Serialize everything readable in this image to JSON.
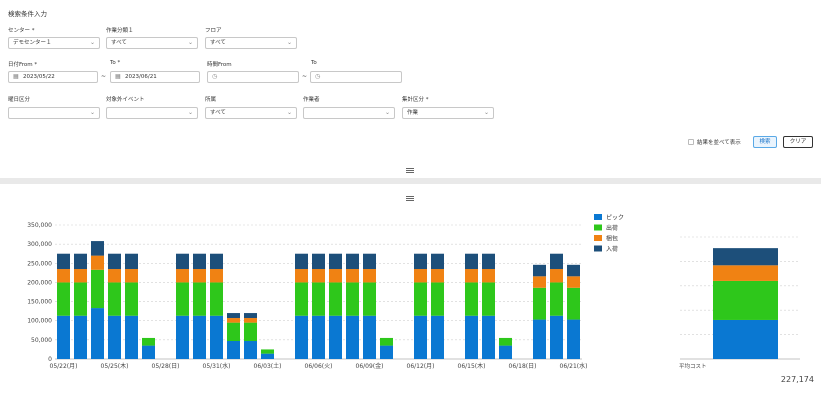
{
  "form": {
    "title": "検索条件入力",
    "center": {
      "label": "センター",
      "value": "デモセンター１"
    },
    "work_class": {
      "label": "作業分類１",
      "value": "すべて"
    },
    "floor": {
      "label": "フロア",
      "value": "すべて"
    },
    "date_from": {
      "label": "日付From",
      "value": "2023/05/22"
    },
    "date_to": {
      "label": "To",
      "value": "2023/06/21"
    },
    "time_from": {
      "label": "時間From",
      "value": ""
    },
    "time_to": {
      "label": "To",
      "value": ""
    },
    "range_sep": "~",
    "weekday": {
      "label": "曜日区分",
      "value": ""
    },
    "excluded_event": {
      "label": "対象外イベント",
      "value": ""
    },
    "affiliation": {
      "label": "所属",
      "value": "すべて"
    },
    "worker": {
      "label": "作業者",
      "value": ""
    },
    "aggregation": {
      "label": "集計区分",
      "value": "作業"
    },
    "show_side_by_side": "結果を並べて表示",
    "search_button": "検索",
    "clear_button": "クリア"
  },
  "colors": {
    "pick": "#0a78d2",
    "shipping": "#2ec71b",
    "packing": "#f08213",
    "receiving": "#1d4f7a"
  },
  "chart_data": [
    {
      "type": "bar",
      "stacked": true,
      "categories": [
        "05/22",
        "05/23",
        "05/24",
        "05/25",
        "05/26",
        "05/27",
        "05/28",
        "05/29",
        "05/30",
        "05/31",
        "06/01",
        "06/02",
        "06/03",
        "06/04",
        "06/05",
        "06/06",
        "06/07",
        "06/08",
        "06/09",
        "06/10",
        "06/11",
        "06/12",
        "06/13",
        "06/14",
        "06/15",
        "06/16",
        "06/17",
        "06/18",
        "06/19",
        "06/20",
        "06/21"
      ],
      "tick_labels": [
        "05/22(月)",
        "05/25(木)",
        "05/28(日)",
        "05/31(水)",
        "06/03(土)",
        "06/06(火)",
        "06/09(金)",
        "06/12(月)",
        "06/15(木)",
        "06/18(日)",
        "06/21(水)"
      ],
      "yticks": [
        "0",
        "50,000",
        "100,000",
        "150,000",
        "200,000",
        "250,000",
        "300,000",
        "350,000"
      ],
      "ylim": [
        0,
        350000
      ],
      "series": [
        {
          "name": "ピック",
          "values": [
            113000,
            113000,
            133000,
            113000,
            113000,
            35000,
            0,
            113000,
            113000,
            113000,
            47000,
            47000,
            14000,
            0,
            113000,
            113000,
            113000,
            113000,
            113000,
            35000,
            0,
            113000,
            113000,
            0,
            113000,
            113000,
            35000,
            0,
            103000,
            113000,
            103000
          ]
        },
        {
          "name": "出荷",
          "values": [
            87000,
            87000,
            100000,
            87000,
            87000,
            20000,
            0,
            87000,
            87000,
            87000,
            48000,
            48000,
            11000,
            0,
            87000,
            87000,
            87000,
            87000,
            87000,
            20000,
            0,
            87000,
            87000,
            0,
            87000,
            87000,
            20000,
            0,
            83000,
            87000,
            83000
          ]
        },
        {
          "name": "梱包",
          "values": [
            35000,
            35000,
            37000,
            35000,
            35000,
            0,
            0,
            35000,
            35000,
            35000,
            12000,
            12000,
            0,
            0,
            35000,
            35000,
            35000,
            35000,
            35000,
            0,
            0,
            35000,
            35000,
            0,
            35000,
            35000,
            0,
            0,
            30000,
            35000,
            30000
          ]
        },
        {
          "name": "入荷",
          "values": [
            40000,
            40000,
            38000,
            40000,
            40000,
            0,
            0,
            40000,
            40000,
            40000,
            13000,
            13000,
            0,
            0,
            40000,
            40000,
            40000,
            40000,
            40000,
            0,
            0,
            40000,
            40000,
            0,
            40000,
            40000,
            0,
            0,
            30000,
            40000,
            30000
          ]
        }
      ]
    },
    {
      "type": "bar",
      "stacked": true,
      "categories": [
        "平均コスト"
      ],
      "series": [
        {
          "name": "ピック",
          "values": [
            80000
          ]
        },
        {
          "name": "出荷",
          "values": [
            80000
          ]
        },
        {
          "name": "梱包",
          "values": [
            32000
          ]
        },
        {
          "name": "入荷",
          "values": [
            35174
          ]
        }
      ],
      "total_label": "227,174"
    }
  ]
}
